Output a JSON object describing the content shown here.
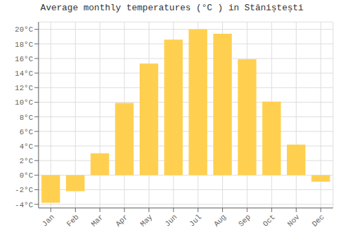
{
  "chart_data": {
    "type": "bar",
    "title": "Average monthly temperatures (°C ) in Stăniștești",
    "categories": [
      "Jan",
      "Feb",
      "Mar",
      "Apr",
      "May",
      "Jun",
      "Jul",
      "Aug",
      "Sep",
      "Oct",
      "Nov",
      "Dec"
    ],
    "values": [
      -3.8,
      -2.2,
      3.0,
      9.9,
      15.3,
      18.6,
      20.0,
      19.4,
      15.9,
      10.1,
      4.2,
      -0.9
    ],
    "color": "#FFD050",
    "ylim": [
      -4.5,
      21
    ],
    "yticks": [
      {
        "value": -4,
        "label": "-4°C"
      },
      {
        "value": -2,
        "label": "-2°C"
      },
      {
        "value": 0,
        "label": "0°C"
      },
      {
        "value": 2,
        "label": "2°C"
      },
      {
        "value": 4,
        "label": "4°C"
      },
      {
        "value": 6,
        "label": "6°C"
      },
      {
        "value": 8,
        "label": "8°C"
      },
      {
        "value": 10,
        "label": "10°C"
      },
      {
        "value": 12,
        "label": "12°C"
      },
      {
        "value": 14,
        "label": "14°C"
      },
      {
        "value": 16,
        "label": "16°C"
      },
      {
        "value": 18,
        "label": "18°C"
      },
      {
        "value": 20,
        "label": "20°C"
      }
    ],
    "grid": true
  }
}
